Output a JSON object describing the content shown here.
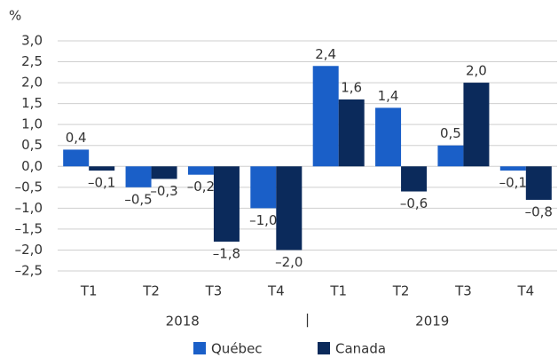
{
  "chart_data": {
    "type": "bar",
    "y_unit": "%",
    "categories": [
      "T1",
      "T2",
      "T3",
      "T4",
      "T1",
      "T2",
      "T3",
      "T4"
    ],
    "x_groups": [
      "2018",
      "2019"
    ],
    "x_group_separator": "|",
    "series": [
      {
        "name": "Québec",
        "color": "#1a5fc8",
        "values": [
          0.4,
          -0.5,
          -0.2,
          -1.0,
          2.4,
          1.4,
          0.5,
          -0.1
        ],
        "value_labels": [
          "0,4",
          "–0,5",
          "–0,2",
          "–1,0",
          "2,4",
          "1,4",
          "0,5",
          "–0,1"
        ]
      },
      {
        "name": "Canada",
        "color": "#0b2a5b",
        "values": [
          -0.1,
          -0.3,
          -1.8,
          -2.0,
          1.6,
          -0.6,
          2.0,
          -0.8
        ],
        "value_labels": [
          "–0,1",
          "–0,3",
          "–1,8",
          "–2,0",
          "1,6",
          "–0,6",
          "2,0",
          "–0,8"
        ]
      }
    ],
    "ylim": [
      -2.5,
      3.0
    ],
    "yticks": [
      {
        "value": 3.0,
        "label": "3,0"
      },
      {
        "value": 2.5,
        "label": "2,5"
      },
      {
        "value": 2.0,
        "label": "2,0"
      },
      {
        "value": 1.5,
        "label": "1,5"
      },
      {
        "value": 1.0,
        "label": "1,0"
      },
      {
        "value": 0.5,
        "label": "0,5"
      },
      {
        "value": 0,
        "label": "0,0"
      },
      {
        "value": -0.5,
        "label": "–0,5"
      },
      {
        "value": -1.0,
        "label": "–1,0"
      },
      {
        "value": -1.5,
        "label": "–1,5"
      },
      {
        "value": -2.0,
        "label": "–2,0"
      },
      {
        "value": -2.5,
        "label": "–2,5"
      }
    ],
    "grid": true
  }
}
